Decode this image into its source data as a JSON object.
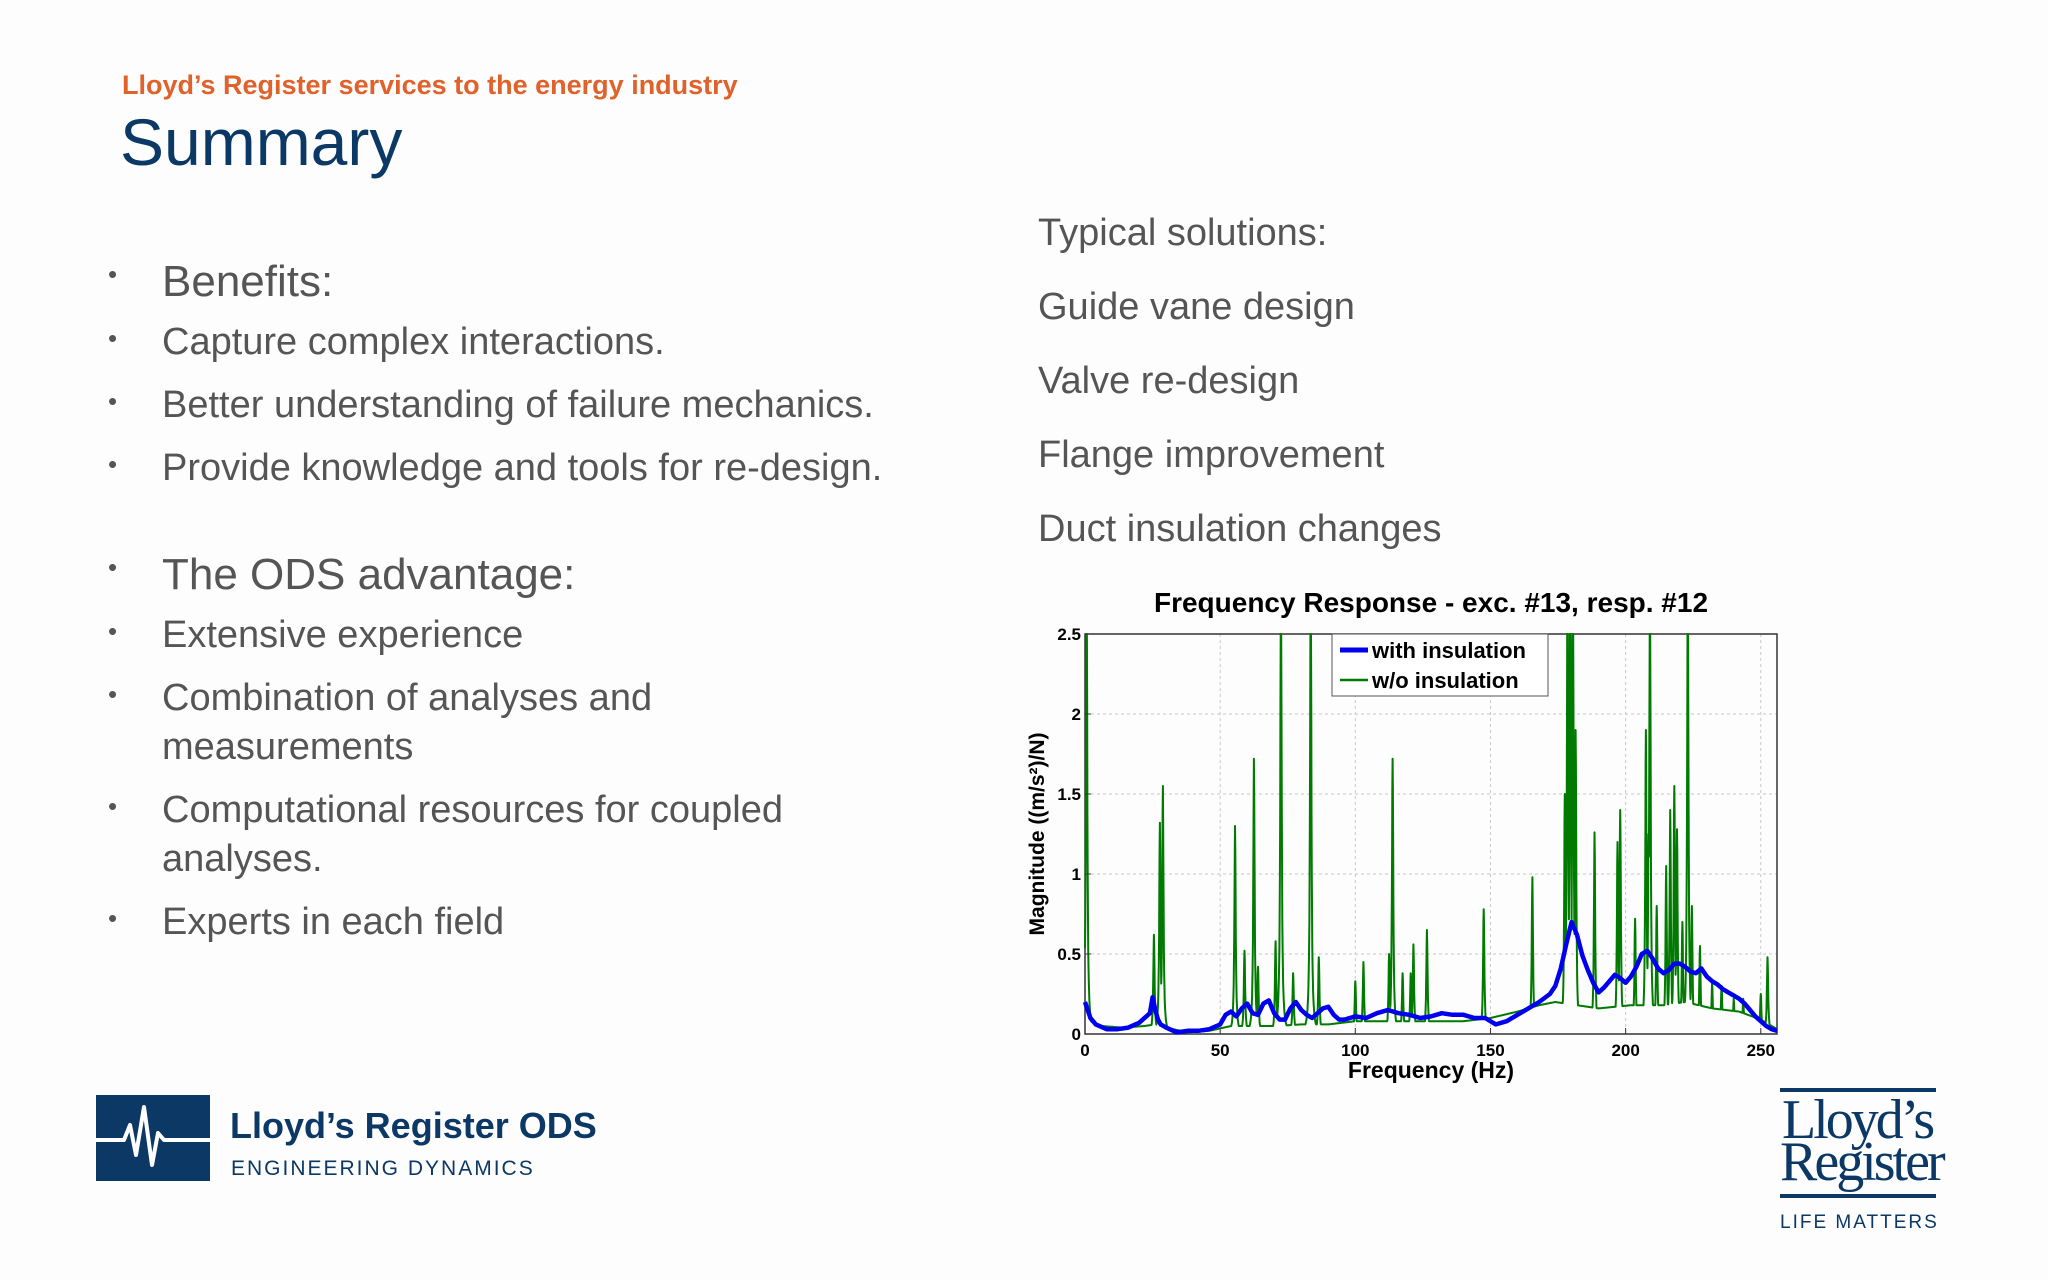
{
  "header": {
    "supertitle": "Lloyd’s Register services to the energy industry",
    "title": "Summary"
  },
  "left_bullets": {
    "benefits_heading": "Benefits:",
    "benefits": [
      "Capture complex interactions.",
      "Better understanding of failure mechanics.",
      "Provide knowledge and tools for re-design."
    ],
    "advantage_heading": "The ODS advantage:",
    "advantages": [
      "Extensive experience",
      "Combination of analyses and measurements",
      "Computational resources for coupled analyses.",
      "Experts in each field"
    ]
  },
  "right_list": {
    "heading": "Typical solutions:",
    "items": [
      "Guide vane design",
      "Valve re-design",
      "Flange improvement",
      "Duct insulation changes"
    ]
  },
  "chart_data": {
    "type": "line",
    "title": "Frequency Response - exc. #13, resp. #12",
    "xlabel": "Frequency (Hz)",
    "ylabel": "Magnitude ((m/s²)/N)",
    "xlim": [
      0,
      256
    ],
    "ylim": [
      0,
      2.5
    ],
    "xticks": [
      0,
      50,
      100,
      150,
      200,
      250
    ],
    "yticks": [
      0,
      0.5,
      1,
      1.5,
      2,
      2.5
    ],
    "grid": true,
    "legend_position": "top-center",
    "series": [
      {
        "name": "with insulation",
        "color": "#0000ee",
        "x": [
          0,
          1,
          2,
          4,
          8,
          12,
          16,
          20,
          24,
          25,
          26,
          27,
          28,
          30,
          34,
          38,
          42,
          46,
          50,
          52,
          54,
          56,
          58,
          60,
          62,
          64,
          66,
          68,
          70,
          72,
          74,
          76,
          78,
          80,
          82,
          84,
          86,
          88,
          90,
          92,
          94,
          96,
          100,
          104,
          108,
          112,
          116,
          120,
          124,
          128,
          132,
          136,
          140,
          144,
          148,
          152,
          156,
          160,
          164,
          168,
          172,
          174,
          176,
          178,
          180,
          182,
          184,
          186,
          188,
          190,
          192,
          194,
          196,
          198,
          200,
          202,
          204,
          206,
          208,
          210,
          212,
          214,
          216,
          218,
          220,
          222,
          224,
          226,
          228,
          230,
          232,
          234,
          236,
          238,
          240,
          242,
          244,
          246,
          248,
          250,
          252,
          254,
          256
        ],
        "values": [
          0.2,
          0.15,
          0.1,
          0.06,
          0.03,
          0.03,
          0.04,
          0.07,
          0.13,
          0.23,
          0.15,
          0.09,
          0.06,
          0.04,
          0.01,
          0.02,
          0.02,
          0.03,
          0.06,
          0.12,
          0.14,
          0.11,
          0.16,
          0.19,
          0.13,
          0.12,
          0.19,
          0.21,
          0.13,
          0.09,
          0.09,
          0.16,
          0.2,
          0.15,
          0.12,
          0.1,
          0.13,
          0.16,
          0.17,
          0.12,
          0.09,
          0.09,
          0.11,
          0.1,
          0.13,
          0.15,
          0.13,
          0.12,
          0.1,
          0.11,
          0.13,
          0.12,
          0.12,
          0.1,
          0.1,
          0.06,
          0.08,
          0.12,
          0.16,
          0.2,
          0.25,
          0.3,
          0.41,
          0.56,
          0.7,
          0.62,
          0.49,
          0.4,
          0.32,
          0.26,
          0.29,
          0.33,
          0.37,
          0.35,
          0.32,
          0.36,
          0.42,
          0.5,
          0.52,
          0.47,
          0.41,
          0.38,
          0.4,
          0.44,
          0.44,
          0.42,
          0.39,
          0.38,
          0.41,
          0.36,
          0.33,
          0.31,
          0.28,
          0.26,
          0.24,
          0.22,
          0.19,
          0.15,
          0.11,
          0.08,
          0.05,
          0.03,
          0.02
        ]
      },
      {
        "name": "w/o insulation",
        "color": "#007a00",
        "baseline": [
          [
            0,
            0.2
          ],
          [
            2,
            0.08
          ],
          [
            6,
            0.05
          ],
          [
            14,
            0.04
          ],
          [
            22,
            0.05
          ],
          [
            26,
            0.06
          ],
          [
            30,
            0.04
          ],
          [
            38,
            0.01
          ],
          [
            46,
            0.02
          ],
          [
            54,
            0.05
          ],
          [
            62,
            0.05
          ],
          [
            70,
            0.05
          ],
          [
            80,
            0.06
          ],
          [
            90,
            0.06
          ],
          [
            100,
            0.08
          ],
          [
            110,
            0.08
          ],
          [
            120,
            0.08
          ],
          [
            130,
            0.08
          ],
          [
            140,
            0.08
          ],
          [
            150,
            0.1
          ],
          [
            160,
            0.14
          ],
          [
            168,
            0.18
          ],
          [
            174,
            0.2
          ],
          [
            182,
            0.18
          ],
          [
            190,
            0.16
          ],
          [
            196,
            0.17
          ],
          [
            202,
            0.18
          ],
          [
            206,
            0.18
          ],
          [
            214,
            0.18
          ],
          [
            222,
            0.2
          ],
          [
            232,
            0.16
          ],
          [
            242,
            0.14
          ],
          [
            250,
            0.09
          ],
          [
            256,
            0.03
          ]
        ],
        "peaks": [
          [
            0.6,
            3.0
          ],
          [
            25.5,
            0.62
          ],
          [
            27.7,
            1.32
          ],
          [
            28.8,
            1.55
          ],
          [
            55.5,
            1.3
          ],
          [
            59.0,
            0.52
          ],
          [
            62.5,
            1.72
          ],
          [
            64.0,
            0.42
          ],
          [
            70.5,
            0.58
          ],
          [
            72.5,
            3.0
          ],
          [
            77.0,
            0.38
          ],
          [
            83.5,
            3.0
          ],
          [
            86.5,
            0.48
          ],
          [
            100.0,
            0.33
          ],
          [
            103.0,
            0.45
          ],
          [
            112.5,
            0.5
          ],
          [
            113.8,
            1.72
          ],
          [
            117.5,
            0.38
          ],
          [
            120.5,
            0.38
          ],
          [
            121.5,
            0.56
          ],
          [
            126.5,
            0.65
          ],
          [
            147.5,
            0.78
          ],
          [
            165.5,
            0.98
          ],
          [
            177.5,
            1.5
          ],
          [
            178.5,
            3.0
          ],
          [
            179.5,
            3.0
          ],
          [
            180.5,
            3.0
          ],
          [
            181.5,
            1.9
          ],
          [
            188.5,
            1.26
          ],
          [
            197.0,
            1.2
          ],
          [
            198.0,
            1.4
          ],
          [
            203.5,
            0.72
          ],
          [
            207.5,
            1.9
          ],
          [
            208.5,
            1.25
          ],
          [
            209.0,
            3.0
          ],
          [
            211.5,
            0.8
          ],
          [
            215.0,
            1.05
          ],
          [
            216.5,
            1.4
          ],
          [
            218.0,
            1.55
          ],
          [
            219.0,
            1.28
          ],
          [
            221.0,
            0.7
          ],
          [
            223.0,
            3.0
          ],
          [
            224.5,
            0.8
          ],
          [
            227.5,
            0.55
          ],
          [
            232.0,
            0.32
          ],
          [
            235.5,
            0.3
          ],
          [
            240.0,
            0.22
          ],
          [
            243.5,
            0.22
          ],
          [
            250.0,
            0.25
          ],
          [
            252.5,
            0.48
          ]
        ]
      }
    ]
  },
  "logos": {
    "ods_name": "Lloyd’s Register ODS",
    "ods_sub": "ENGINEERING DYNAMICS",
    "lr_line1": "Lloyd’s",
    "lr_line2": "Register",
    "lr_tagline": "LIFE MATTERS"
  }
}
